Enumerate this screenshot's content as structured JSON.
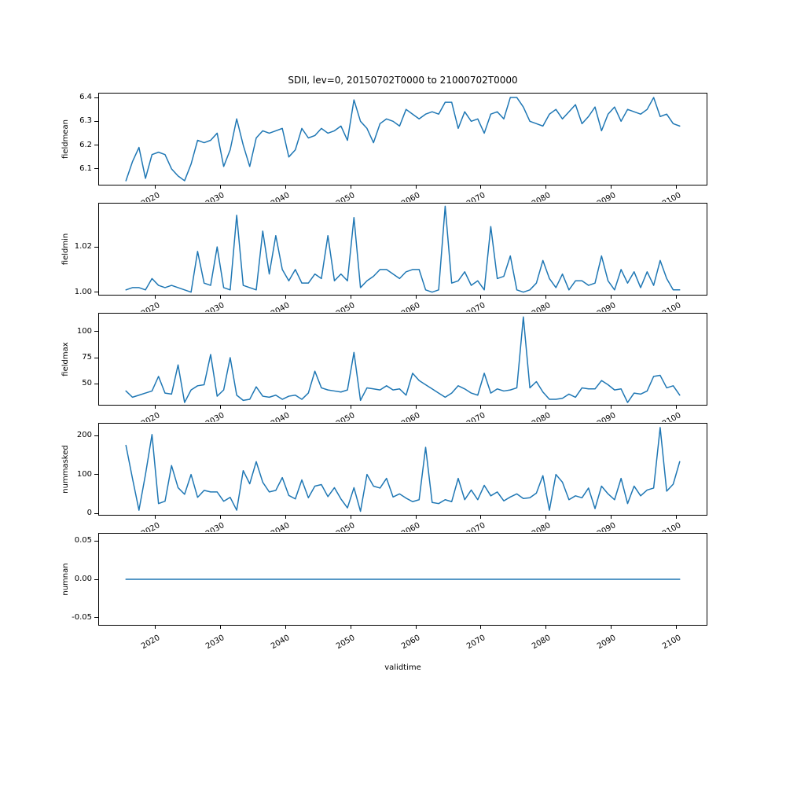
{
  "figure": {
    "title": "SDII, lev=0, 20150702T0000 to 21000702T0000",
    "xlabel": "validtime",
    "line_color": "#1f77b4",
    "background_color": "#ffffff",
    "spine_color": "#000000"
  },
  "x_axis": {
    "tick_labels": [
      "2020",
      "2030",
      "2040",
      "2050",
      "2060",
      "2070",
      "2080",
      "2090",
      "2100"
    ],
    "tick_values": [
      2020,
      2030,
      2040,
      2050,
      2060,
      2070,
      2080,
      2090,
      2100
    ],
    "xlim": [
      2011.25,
      2104.75
    ],
    "tick_label_rotation_deg": 30
  },
  "years": [
    2015,
    2016,
    2017,
    2018,
    2019,
    2020,
    2021,
    2022,
    2023,
    2024,
    2025,
    2026,
    2027,
    2028,
    2029,
    2030,
    2031,
    2032,
    2033,
    2034,
    2035,
    2036,
    2037,
    2038,
    2039,
    2040,
    2041,
    2042,
    2043,
    2044,
    2045,
    2046,
    2047,
    2048,
    2049,
    2050,
    2051,
    2052,
    2053,
    2054,
    2055,
    2056,
    2057,
    2058,
    2059,
    2060,
    2061,
    2062,
    2063,
    2064,
    2065,
    2066,
    2067,
    2068,
    2069,
    2070,
    2071,
    2072,
    2073,
    2074,
    2075,
    2076,
    2077,
    2078,
    2079,
    2080,
    2081,
    2082,
    2083,
    2084,
    2085,
    2086,
    2087,
    2088,
    2089,
    2090,
    2091,
    2092,
    2093,
    2094,
    2095,
    2096,
    2097,
    2098,
    2099,
    2100
  ],
  "chart_data": [
    {
      "type": "line",
      "name": "fieldmean",
      "ylabel": "fieldmean",
      "ylim": [
        6.03,
        6.42
      ],
      "yticks": {
        "values": [
          6.1,
          6.2,
          6.3,
          6.4
        ],
        "labels": [
          "6.1",
          "6.2",
          "6.3",
          "6.4"
        ]
      },
      "x_ref": "years",
      "values": [
        6.05,
        6.13,
        6.19,
        6.06,
        6.16,
        6.17,
        6.16,
        6.1,
        6.07,
        6.05,
        6.12,
        6.22,
        6.21,
        6.22,
        6.25,
        6.11,
        6.18,
        6.31,
        6.2,
        6.11,
        6.23,
        6.26,
        6.25,
        6.26,
        6.27,
        6.15,
        6.18,
        6.27,
        6.23,
        6.24,
        6.27,
        6.25,
        6.26,
        6.28,
        6.22,
        6.39,
        6.3,
        6.27,
        6.21,
        6.29,
        6.31,
        6.3,
        6.28,
        6.35,
        6.33,
        6.31,
        6.33,
        6.34,
        6.33,
        6.38,
        6.38,
        6.27,
        6.34,
        6.3,
        6.31,
        6.25,
        6.33,
        6.34,
        6.31,
        6.4,
        6.4,
        6.36,
        6.3,
        6.29,
        6.28,
        6.33,
        6.35,
        6.31,
        6.34,
        6.37,
        6.29,
        6.32,
        6.36,
        6.26,
        6.33,
        6.36,
        6.3,
        6.35,
        6.34,
        6.33,
        6.35,
        6.4,
        6.32,
        6.33,
        6.29,
        6.28
      ]
    },
    {
      "type": "line",
      "name": "fieldmin",
      "ylabel": "fieldmin",
      "ylim": [
        0.9985,
        1.0395
      ],
      "yticks": {
        "values": [
          1.0,
          1.02
        ],
        "labels": [
          "1.00",
          "1.02"
        ]
      },
      "x_ref": "years",
      "values": [
        1.001,
        1.002,
        1.002,
        1.001,
        1.006,
        1.003,
        1.002,
        1.003,
        1.002,
        1.001,
        1.0,
        1.018,
        1.004,
        1.003,
        1.02,
        1.002,
        1.001,
        1.034,
        1.003,
        1.002,
        1.001,
        1.027,
        1.008,
        1.025,
        1.01,
        1.005,
        1.01,
        1.004,
        1.004,
        1.008,
        1.006,
        1.025,
        1.005,
        1.008,
        1.005,
        1.033,
        1.002,
        1.005,
        1.007,
        1.01,
        1.01,
        1.008,
        1.006,
        1.009,
        1.01,
        1.01,
        1.001,
        1.0,
        1.001,
        1.038,
        1.004,
        1.005,
        1.009,
        1.003,
        1.005,
        1.001,
        1.029,
        1.006,
        1.007,
        1.016,
        1.001,
        1.0,
        1.001,
        1.004,
        1.014,
        1.006,
        1.002,
        1.008,
        1.001,
        1.005,
        1.005,
        1.003,
        1.004,
        1.016,
        1.005,
        1.001,
        1.01,
        1.004,
        1.009,
        1.002,
        1.009,
        1.003,
        1.014,
        1.006,
        1.001,
        1.001
      ]
    },
    {
      "type": "line",
      "name": "fieldmax",
      "ylabel": "fieldmax",
      "ylim": [
        29,
        118
      ],
      "yticks": {
        "values": [
          50,
          75,
          100
        ],
        "labels": [
          "50",
          "75",
          "100"
        ]
      },
      "x_ref": "years",
      "values": [
        43,
        37,
        39,
        41,
        43,
        57,
        41,
        40,
        68,
        32,
        44,
        48,
        49,
        78,
        38,
        44,
        75,
        39,
        34,
        35,
        47,
        38,
        37,
        39,
        35,
        38,
        39,
        35,
        41,
        62,
        46,
        44,
        43,
        42,
        44,
        80,
        34,
        46,
        45,
        44,
        48,
        44,
        45,
        39,
        60,
        53,
        49,
        45,
        41,
        37,
        41,
        48,
        45,
        41,
        39,
        60,
        41,
        45,
        43,
        44,
        46,
        114,
        46,
        52,
        42,
        35,
        35,
        36,
        40,
        37,
        46,
        45,
        45,
        53,
        49,
        44,
        45,
        32,
        41,
        40,
        43,
        57,
        58,
        46,
        48,
        39
      ]
    },
    {
      "type": "line",
      "name": "nummasked",
      "ylabel": "nummasked",
      "ylim": [
        -6,
        233
      ],
      "yticks": {
        "values": [
          0,
          100,
          200
        ],
        "labels": [
          "0",
          "100",
          "200"
        ]
      },
      "x_ref": "years",
      "values": [
        175,
        90,
        8,
        100,
        203,
        25,
        31,
        123,
        66,
        49,
        100,
        41,
        59,
        55,
        55,
        31,
        41,
        8,
        110,
        76,
        133,
        80,
        55,
        59,
        92,
        46,
        37,
        86,
        40,
        70,
        74,
        43,
        66,
        37,
        14,
        66,
        5,
        100,
        70,
        65,
        90,
        42,
        50,
        39,
        30,
        35,
        170,
        28,
        25,
        35,
        30,
        90,
        35,
        60,
        35,
        72,
        45,
        55,
        32,
        42,
        50,
        38,
        40,
        52,
        97,
        8,
        100,
        80,
        35,
        45,
        40,
        65,
        12,
        70,
        50,
        35,
        90,
        25,
        70,
        45,
        60,
        65,
        221,
        57,
        75,
        133
      ]
    },
    {
      "type": "line",
      "name": "numnan",
      "ylabel": "numnan",
      "ylim": [
        -0.0605,
        0.0605
      ],
      "yticks": {
        "values": [
          -0.05,
          0.0,
          0.05
        ],
        "labels": [
          "-0.05",
          "0.00",
          "0.05"
        ]
      },
      "x_ref": "years",
      "values": [
        0,
        0,
        0,
        0,
        0,
        0,
        0,
        0,
        0,
        0,
        0,
        0,
        0,
        0,
        0,
        0,
        0,
        0,
        0,
        0,
        0,
        0,
        0,
        0,
        0,
        0,
        0,
        0,
        0,
        0,
        0,
        0,
        0,
        0,
        0,
        0,
        0,
        0,
        0,
        0,
        0,
        0,
        0,
        0,
        0,
        0,
        0,
        0,
        0,
        0,
        0,
        0,
        0,
        0,
        0,
        0,
        0,
        0,
        0,
        0,
        0,
        0,
        0,
        0,
        0,
        0,
        0,
        0,
        0,
        0,
        0,
        0,
        0,
        0,
        0,
        0,
        0,
        0,
        0,
        0,
        0,
        0,
        0,
        0,
        0,
        0
      ]
    }
  ]
}
